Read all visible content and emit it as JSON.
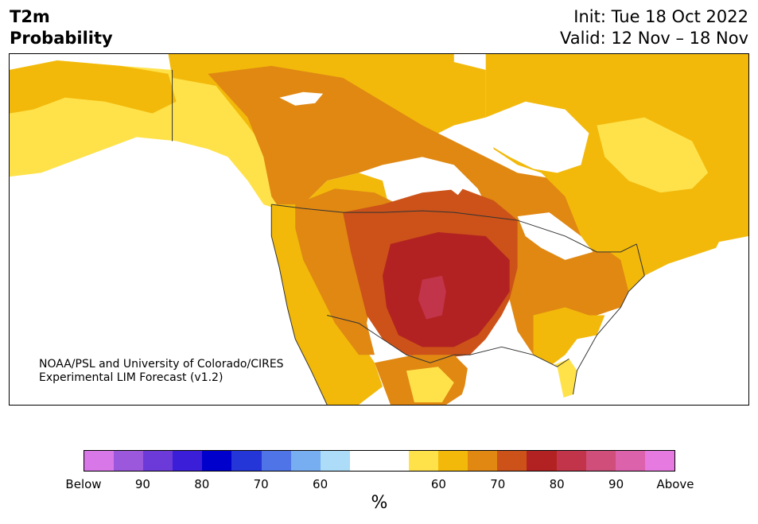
{
  "header": {
    "variable": "T2m",
    "metric": "Probability",
    "init": "Init: Tue 18 Oct 2022",
    "valid": "Valid: 12 Nov – 18 Nov"
  },
  "credit": {
    "line1": "NOAA/PSL and University of Colorado/CIRES",
    "line2": "Experimental LIM Forecast (v1.2)"
  },
  "colorbar": {
    "unit": "%",
    "colors": [
      "#d877e8",
      "#9b58dc",
      "#6b3ad8",
      "#3a1ed8",
      "#0000cc",
      "#2536d8",
      "#4f74e8",
      "#77aef2",
      "#acdcf8",
      "#ffffff",
      "#ffffff",
      "#ffe24a",
      "#f2b90a",
      "#e08812",
      "#cc5219",
      "#b32222",
      "#c2344a",
      "#cf4e7a",
      "#dc62ac",
      "#e67ae0"
    ],
    "ticks": [
      "Below",
      "90",
      "80",
      "70",
      "60",
      "60",
      "70",
      "80",
      "90",
      "Above"
    ]
  },
  "colors": {
    "p55_60": "#ffe24a",
    "p60_65": "#f2b90a",
    "p65_70": "#e08812",
    "p70_75": "#cc5219",
    "p75_80": "#b32222",
    "p80_85": "#c2344a",
    "below_65": "#77aef2",
    "land_neutral": "#ffffff",
    "water": "#ffffff",
    "border": "#333333"
  }
}
